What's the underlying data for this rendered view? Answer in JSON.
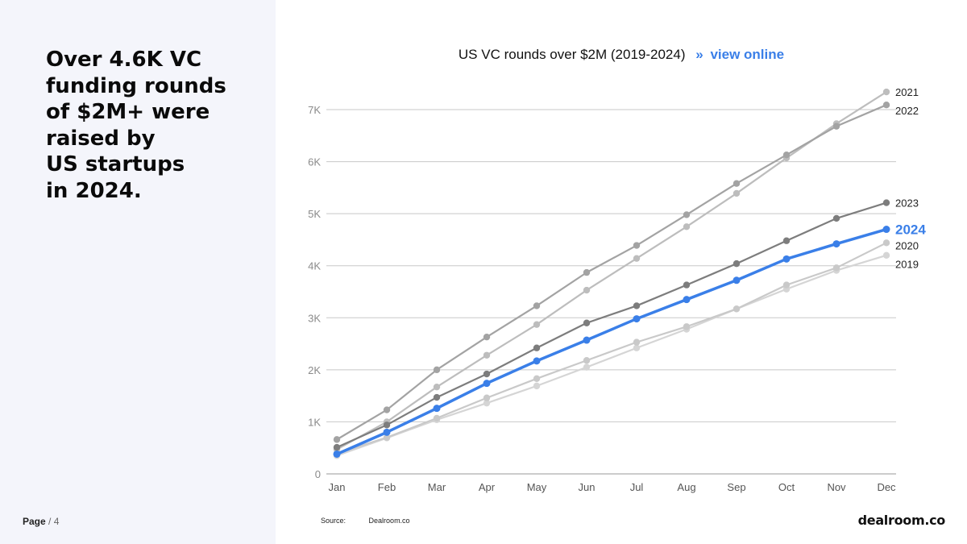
{
  "headline": {
    "lines": [
      "Over 4.6K VC",
      "funding rounds",
      "of $2M+ were",
      "raised by",
      "US startups",
      "in 2024."
    ]
  },
  "footer": {
    "page_label": "Page",
    "page_sep": "/",
    "page_number": "4",
    "source_label": "Source:",
    "source_value": "Dealroom.co"
  },
  "brand": "dealroom.co",
  "link_arrow": "»",
  "link_label": "view online",
  "colors": {
    "accent": "#3a7fe8",
    "panel_bg": "#f4f5fb"
  },
  "chart_data": {
    "type": "line",
    "title": "US VC rounds over $2M (2019-2024)",
    "categories": [
      "Jan",
      "Feb",
      "Mar",
      "Apr",
      "May",
      "Jun",
      "Jul",
      "Aug",
      "Sep",
      "Oct",
      "Nov",
      "Dec"
    ],
    "ylim": [
      0,
      7000
    ],
    "yticks": [
      0,
      1000,
      2000,
      3000,
      4000,
      5000,
      6000,
      7000
    ],
    "ytick_labels": [
      "0",
      "1K",
      "2K",
      "3K",
      "4K",
      "5K",
      "6K",
      "7K"
    ],
    "grid": true,
    "legend": "end-of-line labels",
    "series": [
      {
        "name": "2019",
        "color": "#d5d5d5",
        "values": [
          350,
          690,
          1040,
          1360,
          1690,
          2050,
          2420,
          2780,
          3170,
          3550,
          3910,
          4200
        ]
      },
      {
        "name": "2020",
        "color": "#c9c9c9",
        "values": [
          390,
          700,
          1070,
          1460,
          1830,
          2180,
          2530,
          2830,
          3170,
          3630,
          3960,
          4440
        ]
      },
      {
        "name": "2021",
        "color": "#bdbdbd",
        "values": [
          470,
          1000,
          1670,
          2280,
          2870,
          3530,
          4140,
          4750,
          5390,
          6070,
          6730,
          7340
        ]
      },
      {
        "name": "2022",
        "color": "#a3a3a3",
        "values": [
          660,
          1230,
          2000,
          2630,
          3230,
          3870,
          4390,
          4980,
          5580,
          6130,
          6680,
          7090
        ]
      },
      {
        "name": "2023",
        "color": "#7d7d7d",
        "values": [
          510,
          940,
          1470,
          1920,
          2420,
          2900,
          3230,
          3630,
          4040,
          4480,
          4910,
          5210
        ]
      },
      {
        "name": "2024",
        "color": "#3a7fe8",
        "highlight": true,
        "values": [
          380,
          800,
          1260,
          1740,
          2170,
          2570,
          2980,
          3350,
          3720,
          4130,
          4420,
          4700
        ]
      }
    ]
  }
}
